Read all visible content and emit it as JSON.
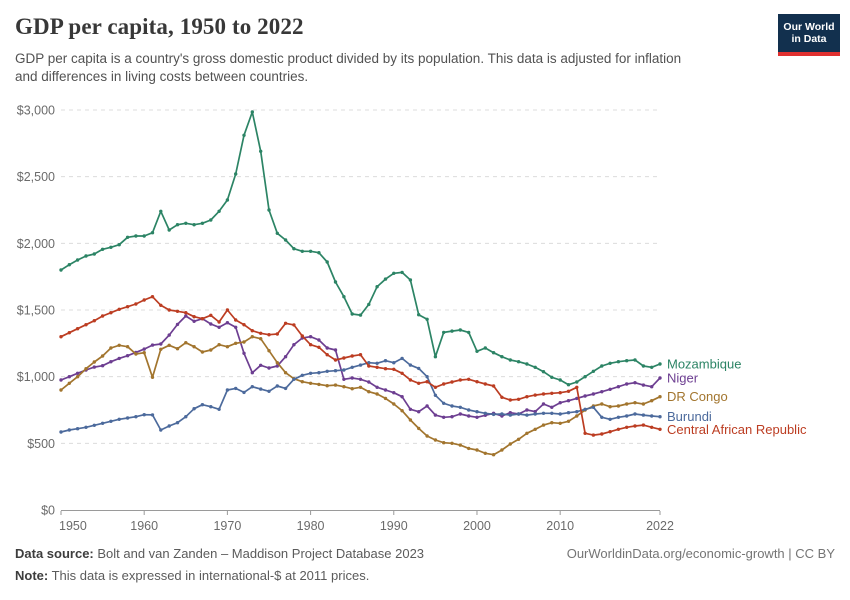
{
  "header": {
    "title": "GDP per capita, 1950 to 2022",
    "subtitle_line1": "GDP per capita is a country's gross domestic product divided by its population. This data is adjusted for inflation",
    "subtitle_line2": "and differences in living costs between countries.",
    "logo": {
      "line1": "Our World",
      "line2": "in Data",
      "bg_color": "#12304E",
      "accent_color": "#E0302F"
    }
  },
  "chart_data": {
    "type": "line",
    "title": "GDP per capita, 1950 to 2022",
    "xlabel": "",
    "ylabel": "",
    "unit": "international-$ at 2011 prices",
    "xlim": [
      1950,
      2022
    ],
    "ylim": [
      0,
      3000
    ],
    "grid": "horizontal-dashed",
    "legend_position": "line-end-labels-right",
    "x_ticks": [
      1950,
      1960,
      1970,
      1980,
      1990,
      2000,
      2010,
      2022
    ],
    "y_ticks": [
      0,
      500,
      1000,
      1500,
      2000,
      2500,
      3000
    ],
    "y_tick_labels": [
      "$0",
      "$500",
      "$1,000",
      "$1,500",
      "$2,000",
      "$2,500",
      "$3,000"
    ],
    "x": [
      1950,
      1951,
      1952,
      1953,
      1954,
      1955,
      1956,
      1957,
      1958,
      1959,
      1960,
      1961,
      1962,
      1963,
      1964,
      1965,
      1966,
      1967,
      1968,
      1969,
      1970,
      1971,
      1972,
      1973,
      1974,
      1975,
      1976,
      1977,
      1978,
      1979,
      1980,
      1981,
      1982,
      1983,
      1984,
      1985,
      1986,
      1987,
      1988,
      1989,
      1990,
      1991,
      1992,
      1993,
      1994,
      1995,
      1996,
      1997,
      1998,
      1999,
      2000,
      2001,
      2002,
      2003,
      2004,
      2005,
      2006,
      2007,
      2008,
      2009,
      2010,
      2011,
      2012,
      2013,
      2014,
      2015,
      2016,
      2017,
      2018,
      2019,
      2020,
      2021,
      2022
    ],
    "series": [
      {
        "name": "Mozambique",
        "color": "#2C8465",
        "values": [
          1800,
          1840,
          1875,
          1905,
          1920,
          1955,
          1970,
          1990,
          2045,
          2055,
          2055,
          2080,
          2240,
          2100,
          2140,
          2150,
          2140,
          2150,
          2175,
          2240,
          2325,
          2520,
          2810,
          2985,
          2690,
          2250,
          2075,
          2025,
          1960,
          1940,
          1940,
          1930,
          1860,
          1710,
          1600,
          1470,
          1462,
          1542,
          1675,
          1732,
          1775,
          1782,
          1725,
          1465,
          1430,
          1150,
          1332,
          1342,
          1350,
          1332,
          1190,
          1215,
          1180,
          1150,
          1125,
          1112,
          1095,
          1070,
          1037,
          995,
          975,
          940,
          960,
          1000,
          1040,
          1080,
          1100,
          1112,
          1120,
          1125,
          1080,
          1070,
          1095
        ]
      },
      {
        "name": "Niger",
        "color": "#6D3E91",
        "values": [
          975,
          1000,
          1025,
          1050,
          1072,
          1082,
          1112,
          1137,
          1157,
          1182,
          1207,
          1237,
          1245,
          1312,
          1392,
          1455,
          1415,
          1435,
          1395,
          1370,
          1405,
          1370,
          1175,
          1030,
          1085,
          1065,
          1080,
          1150,
          1240,
          1290,
          1300,
          1275,
          1215,
          1200,
          980,
          990,
          980,
          960,
          920,
          900,
          880,
          850,
          755,
          737,
          780,
          712,
          695,
          700,
          720,
          705,
          695,
          710,
          725,
          705,
          730,
          720,
          750,
          738,
          795,
          770,
          805,
          820,
          837,
          855,
          870,
          887,
          905,
          925,
          945,
          955,
          937,
          925,
          990
        ]
      },
      {
        "name": "DR Congo",
        "color": "#A2752E",
        "values": [
          900,
          950,
          1000,
          1060,
          1110,
          1155,
          1215,
          1235,
          1225,
          1170,
          1180,
          995,
          1205,
          1235,
          1210,
          1255,
          1225,
          1185,
          1200,
          1240,
          1225,
          1250,
          1260,
          1300,
          1285,
          1195,
          1105,
          1030,
          985,
          962,
          950,
          942,
          932,
          937,
          925,
          910,
          920,
          887,
          870,
          837,
          795,
          745,
          675,
          612,
          555,
          525,
          505,
          500,
          487,
          462,
          450,
          425,
          415,
          450,
          495,
          530,
          575,
          605,
          637,
          655,
          650,
          665,
          705,
          750,
          780,
          795,
          775,
          780,
          795,
          805,
          795,
          820,
          850
        ]
      },
      {
        "name": "Burundi",
        "color": "#4C6A9C",
        "values": [
          585,
          600,
          610,
          620,
          635,
          650,
          665,
          680,
          690,
          700,
          715,
          713,
          600,
          630,
          655,
          700,
          760,
          790,
          775,
          755,
          900,
          912,
          882,
          925,
          907,
          890,
          930,
          912,
          980,
          1010,
          1025,
          1030,
          1040,
          1045,
          1050,
          1070,
          1087,
          1105,
          1100,
          1120,
          1105,
          1137,
          1087,
          1062,
          1000,
          860,
          800,
          780,
          770,
          750,
          737,
          725,
          717,
          720,
          712,
          720,
          712,
          720,
          725,
          725,
          720,
          730,
          737,
          755,
          770,
          695,
          680,
          695,
          705,
          720,
          712,
          705,
          700
        ]
      },
      {
        "name": "Central African Republic",
        "color": "#BC3D22",
        "values": [
          1300,
          1330,
          1360,
          1390,
          1420,
          1455,
          1480,
          1505,
          1525,
          1545,
          1575,
          1600,
          1535,
          1500,
          1490,
          1480,
          1450,
          1435,
          1460,
          1410,
          1500,
          1425,
          1390,
          1345,
          1325,
          1315,
          1320,
          1400,
          1388,
          1305,
          1240,
          1220,
          1165,
          1125,
          1140,
          1155,
          1165,
          1080,
          1070,
          1060,
          1055,
          1025,
          975,
          950,
          962,
          920,
          945,
          960,
          975,
          980,
          962,
          945,
          930,
          845,
          825,
          830,
          850,
          862,
          870,
          875,
          880,
          890,
          920,
          575,
          562,
          570,
          587,
          605,
          620,
          630,
          637,
          620,
          605
        ]
      }
    ]
  },
  "footer": {
    "source_label": "Data source:",
    "source_text": " Bolt and van Zanden – Maddison Project Database 2023",
    "note_label": "Note:",
    "note_text": " This data is expressed in international-$ at 2011 prices.",
    "link_text": "OurWorldinData.org/economic-growth | CC BY"
  }
}
